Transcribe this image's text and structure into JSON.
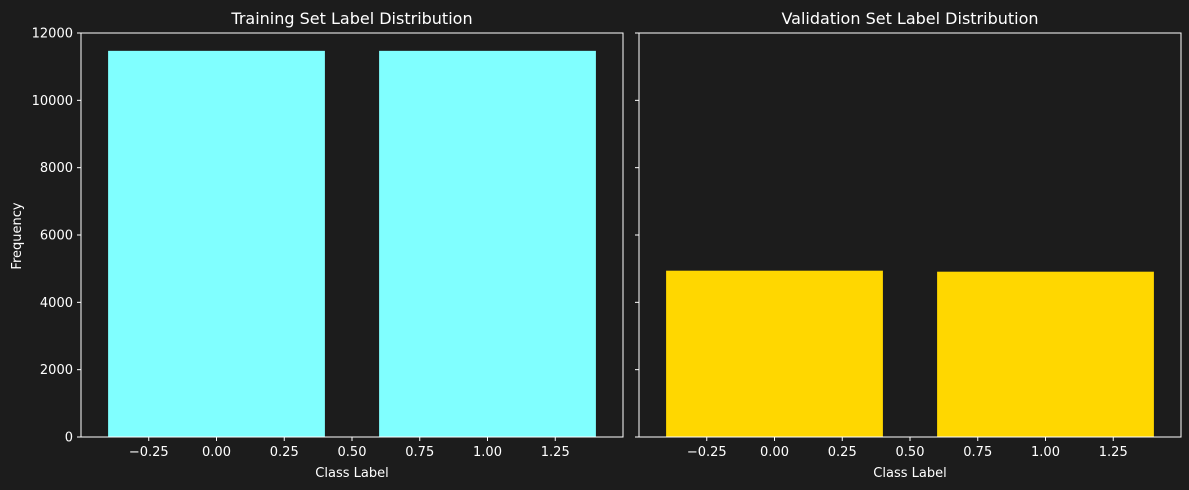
{
  "figure": {
    "background": "#1c1c1c",
    "foreground": "#ffffff"
  },
  "chart_data": [
    {
      "type": "bar",
      "title": "Training Set Label Distribution",
      "xlabel": "Class Label",
      "ylabel": "Frequency",
      "x": [
        0,
        1
      ],
      "values": [
        11470,
        11470
      ],
      "bar_width": 0.8,
      "color": "#80ffff",
      "xlim": [
        -0.5,
        1.5
      ],
      "ylim": [
        0,
        12000
      ],
      "xticks": [
        -0.25,
        0.0,
        0.25,
        0.5,
        0.75,
        1.0,
        1.25
      ],
      "xtick_labels": [
        "−0.25",
        "0.00",
        "0.25",
        "0.50",
        "0.75",
        "1.00",
        "1.25"
      ],
      "yticks": [
        0,
        2000,
        4000,
        6000,
        8000,
        10000,
        12000
      ],
      "ytick_labels": [
        "0",
        "2000",
        "4000",
        "6000",
        "8000",
        "10000",
        "12000"
      ],
      "grid": false,
      "legend": "none"
    },
    {
      "type": "bar",
      "title": "Validation Set Label Distribution",
      "xlabel": "Class Label",
      "ylabel": "",
      "x": [
        0,
        1
      ],
      "values": [
        4940,
        4910
      ],
      "bar_width": 0.8,
      "color": "#ffd700",
      "xlim": [
        -0.5,
        1.5
      ],
      "ylim": [
        0,
        12000
      ],
      "xticks": [
        -0.25,
        0.0,
        0.25,
        0.5,
        0.75,
        1.0,
        1.25
      ],
      "xtick_labels": [
        "−0.25",
        "0.00",
        "0.25",
        "0.50",
        "0.75",
        "1.00",
        "1.25"
      ],
      "yticks": [
        0,
        2000,
        4000,
        6000,
        8000,
        10000,
        12000
      ],
      "ytick_labels": [
        "",
        "",
        "",
        "",
        "",
        "",
        ""
      ],
      "grid": false,
      "legend": "none"
    }
  ]
}
